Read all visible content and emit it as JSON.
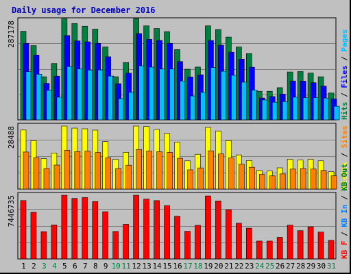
{
  "chart_data": {
    "type": "bar",
    "title": "Daily usage for December 2016",
    "categories": [
      "1",
      "2",
      "3",
      "4",
      "5",
      "6",
      "7",
      "8",
      "9",
      "10",
      "11",
      "12",
      "13",
      "14",
      "15",
      "16",
      "17",
      "18",
      "19",
      "20",
      "21",
      "22",
      "23",
      "24",
      "25",
      "26",
      "27",
      "28",
      "29",
      "30",
      "31"
    ],
    "weekend_days": [
      "3",
      "4",
      "10",
      "11",
      "17",
      "18",
      "24",
      "25",
      "31"
    ],
    "panels": [
      {
        "id": "hits",
        "ymax_label": "287178",
        "ymax": 287178,
        "side_labels": [
          {
            "text": "Hits",
            "color": "#008040"
          },
          {
            "text": " / ",
            "color": "#000000"
          },
          {
            "text": "Files",
            "color": "#0000ff"
          },
          {
            "text": " / ",
            "color": "#000000"
          },
          {
            "text": "Pages",
            "color": "#00c0ff"
          }
        ],
        "series": [
          {
            "name": "Hits",
            "color": "#008040",
            "values": [
              256250,
              214680,
              124680,
              162920,
              292630,
              278430,
              270830,
              262470,
              210850,
              124680,
              165560,
              293000,
              271890,
              264320,
              255110,
              203130,
              146550,
              152710,
              271890,
              261270,
              239450,
              210850,
              191860,
              82810,
              82810,
              93180,
              138500,
              139730,
              135220,
              124680,
              77690
            ]
          },
          {
            "name": "Files",
            "color": "#0000ff",
            "values": [
              221300,
              187600,
              105720,
              126310,
              243970,
              228420,
              225720,
              221410,
              182380,
              104730,
              135130,
              249590,
              232950,
              229770,
              221270,
              168760,
              124130,
              130380,
              229400,
              215930,
              195740,
              175660,
              152290,
              63240,
              67370,
              74680,
              112550,
              112180,
              107480,
              97530,
              60620
            ]
          },
          {
            "name": "Pages",
            "color": "#00c0ff",
            "values": [
              139460,
              131930,
              85400,
              65660,
              154020,
              147020,
              144080,
              144280,
              126650,
              61360,
              79570,
              156290,
              152470,
              147020,
              147020,
              112420,
              69150,
              79570,
              151460,
              140540,
              128830,
              109000,
              85990,
              57660,
              51100,
              53060,
              65660,
              64360,
              64360,
              63060,
              39500
            ]
          }
        ]
      },
      {
        "id": "visits",
        "ymax_label": "28488",
        "ymax": 28488,
        "side_labels": [
          {
            "text": "Visits",
            "color": "#ffff00"
          },
          {
            "text": " / ",
            "color": "#000000"
          },
          {
            "text": "Sites",
            "color": "#ff8000"
          }
        ],
        "series": [
          {
            "name": "Visits",
            "color": "#ffff00",
            "values": [
              26680,
              21930,
              13760,
              16300,
              28480,
              27550,
              27250,
              26640,
              21450,
              13460,
              16610,
              28480,
              28300,
              26950,
              25110,
              21190,
              12760,
              15730,
              27850,
              26260,
              21930,
              15430,
              12890,
              8450,
              8140,
              9600,
              13460,
              13150,
              13460,
              12760,
              7830
            ]
          },
          {
            "name": "Sites",
            "color": "#ff8000",
            "values": [
              16750,
              14190,
              9290,
              10850,
              17510,
              16970,
              17190,
              16510,
              14100,
              9290,
              10780,
              17850,
              17190,
              16880,
              16580,
              13900,
              8690,
              9560,
              17290,
              15870,
              14100,
              11220,
              9850,
              6630,
              5990,
              6860,
              9030,
              9290,
              9050,
              8440,
              5990
            ]
          }
        ]
      },
      {
        "id": "kbytes",
        "ymax_label": "7446735",
        "ymax": 7446735,
        "side_labels": [
          {
            "text": "KB F",
            "color": "#ff0000"
          },
          {
            "text": " / ",
            "color": "#000000"
          },
          {
            "text": "KB In",
            "color": "#0080ff"
          },
          {
            "text": " / ",
            "color": "#000000"
          },
          {
            "text": "KB Out",
            "color": "#008000"
          }
        ],
        "series": [
          {
            "name": "KB F",
            "color": "#ff0000",
            "values": [
              6822000,
              5451000,
              3188000,
              3977000,
              7446735,
              7070000,
              7173000,
              6712000,
              5519000,
              3211000,
              4044000,
              7446735,
              7002000,
              6816000,
              6241000,
              4996000,
              3234000,
              3929000,
              7362000,
              6781000,
              5749000,
              4178000,
              3594000,
              2087000,
              2087000,
              2522000,
              3952000,
              3303000,
              3758000,
              3139000,
              2179000
            ]
          }
        ]
      }
    ],
    "grid": true
  }
}
